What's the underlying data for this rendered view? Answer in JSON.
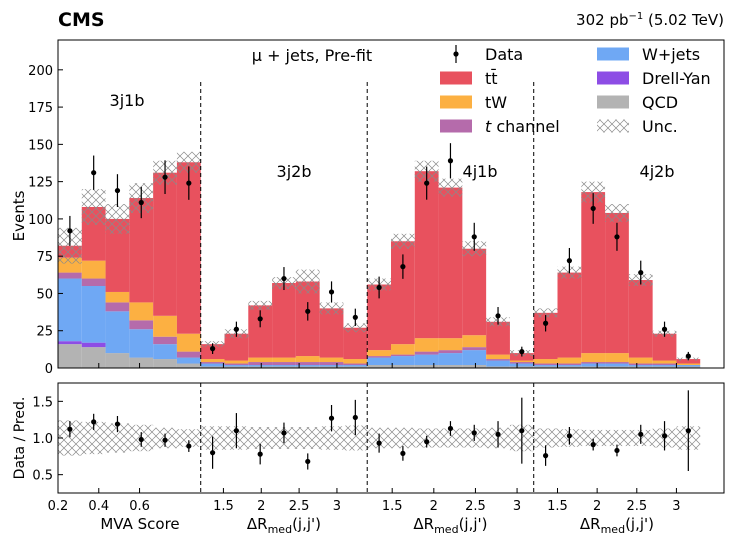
{
  "header": {
    "experiment": "CMS",
    "lumi": "302 pb",
    "lumi_exp": "−1",
    "energy": " (5.02 TeV)",
    "channel": "μ + jets, Pre-fit"
  },
  "colors": {
    "ttbar": "#e8515e",
    "tW": "#fcb042",
    "tchannel": "#b56bab",
    "wjets": "#6fa8f4",
    "dy": "#8d4de5",
    "qcd": "#b3b3b3"
  },
  "legend": [
    {
      "key": "data",
      "label": "Data",
      "kind": "marker"
    },
    {
      "key": "ttbar",
      "label": "tt̄",
      "kind": "patch"
    },
    {
      "key": "tW",
      "label": "tW",
      "kind": "patch"
    },
    {
      "key": "tchannel",
      "label": "t channel",
      "kind": "patch",
      "italic_prefix": "t"
    },
    {
      "key": "wjets",
      "label": "W+jets",
      "kind": "patch"
    },
    {
      "key": "dy",
      "label": "Drell-Yan",
      "kind": "patch"
    },
    {
      "key": "qcd",
      "label": "QCD",
      "kind": "patch"
    },
    {
      "key": "unc",
      "label": "Unc.",
      "kind": "hatch"
    }
  ],
  "chart_data": {
    "type": "stacked-bar",
    "main": {
      "ylabel": "Events",
      "ylim": [
        0,
        220
      ],
      "yticks": [
        0,
        25,
        50,
        75,
        100,
        125,
        150,
        175,
        200
      ]
    },
    "ratio": {
      "ylabel": "Data / Pred.",
      "ylim": [
        0.25,
        1.75
      ],
      "yticks": [
        0.5,
        1.0,
        1.5
      ],
      "ytick_labels": [
        "0.5",
        "1.0",
        "1.5"
      ]
    },
    "x_total_bins": 28,
    "regions": [
      {
        "name": "3j1b",
        "xlabel": "MVA Score",
        "xrange": [
          0.2,
          0.9
        ],
        "xticks": [
          0.2,
          0.4,
          0.6
        ],
        "xtick_labels": [
          "0.2",
          "0.4",
          "0.6"
        ],
        "bins": [
          {
            "qcd": 16,
            "dy": 2,
            "wjets": 42,
            "tchannel": 4,
            "tW": 10,
            "ttbar": 8,
            "unc": 12,
            "data": 92,
            "data_err": 10,
            "ratio": 1.12,
            "ratio_err": 0.11,
            "runc": 0.24
          },
          {
            "qcd": 14,
            "dy": 3,
            "wjets": 38,
            "tchannel": 5,
            "tW": 12,
            "ttbar": 36,
            "unc": 12,
            "data": 131,
            "data_err": 11.5,
            "ratio": 1.22,
            "ratio_err": 0.11,
            "runc": 0.22
          },
          {
            "qcd": 10,
            "dy": 0,
            "wjets": 28,
            "tchannel": 6,
            "tW": 7,
            "ttbar": 49,
            "unc": 10,
            "data": 119,
            "data_err": 11,
            "ratio": 1.19,
            "ratio_err": 0.11,
            "runc": 0.2
          },
          {
            "qcd": 7,
            "dy": 0,
            "wjets": 19,
            "tchannel": 6,
            "tW": 12,
            "ttbar": 70,
            "unc": 10,
            "data": 111,
            "data_err": 10.5,
            "ratio": 0.98,
            "ratio_err": 0.1,
            "runc": 0.18
          },
          {
            "qcd": 6,
            "dy": 0,
            "wjets": 10,
            "tchannel": 5,
            "tW": 14,
            "ttbar": 96,
            "unc": 8,
            "data": 128,
            "data_err": 11.3,
            "ratio": 0.97,
            "ratio_err": 0.09,
            "runc": 0.14
          },
          {
            "qcd": 3,
            "dy": 0,
            "wjets": 4,
            "tchannel": 4,
            "tW": 12,
            "ttbar": 115,
            "unc": 7,
            "data": 124,
            "data_err": 11.2,
            "ratio": 0.89,
            "ratio_err": 0.08,
            "runc": 0.12
          }
        ]
      },
      {
        "name": "3j2b",
        "xlabel": "ΔR_med(j,j')",
        "xrange": [
          1.2,
          3.4
        ],
        "xticks": [
          1.5,
          2,
          2.5,
          3
        ],
        "xtick_labels": [
          "1.5",
          "2",
          "2.5",
          "3"
        ],
        "bins": [
          {
            "qcd": 1,
            "dy": 0,
            "wjets": 2,
            "tchannel": 1,
            "tW": 2,
            "ttbar": 10,
            "unc": 2,
            "data": 13,
            "data_err": 3.6,
            "ratio": 0.8,
            "ratio_err": 0.22,
            "runc": 0.16
          },
          {
            "qcd": 1,
            "dy": 0,
            "wjets": 1,
            "tchannel": 1,
            "tW": 2,
            "ttbar": 18,
            "unc": 3,
            "data": 26,
            "data_err": 5.1,
            "ratio": 1.1,
            "ratio_err": 0.24,
            "runc": 0.16
          },
          {
            "qcd": 1,
            "dy": 0,
            "wjets": 1,
            "tchannel": 2,
            "tW": 3,
            "ttbar": 35,
            "unc": 3,
            "data": 33,
            "data_err": 5.7,
            "ratio": 0.78,
            "ratio_err": 0.14,
            "runc": 0.15
          },
          {
            "qcd": 1,
            "dy": 0,
            "wjets": 1,
            "tchannel": 2,
            "tW": 3,
            "ttbar": 50,
            "unc": 4,
            "data": 60,
            "data_err": 7.7,
            "ratio": 1.07,
            "ratio_err": 0.14,
            "runc": 0.15
          },
          {
            "qcd": 1,
            "dy": 0,
            "wjets": 1,
            "tchannel": 2,
            "tW": 4,
            "ttbar": 50,
            "unc": 8,
            "data": 38,
            "data_err": 6.2,
            "ratio": 0.68,
            "ratio_err": 0.11,
            "runc": 0.15
          },
          {
            "qcd": 1,
            "dy": 0,
            "wjets": 1,
            "tchannel": 2,
            "tW": 3,
            "ttbar": 33,
            "unc": 4,
            "data": 51,
            "data_err": 7.1,
            "ratio": 1.27,
            "ratio_err": 0.18,
            "runc": 0.16
          },
          {
            "qcd": 1,
            "dy": 0,
            "wjets": 1,
            "tchannel": 1,
            "tW": 3,
            "ttbar": 21,
            "unc": 3,
            "data": 34,
            "data_err": 5.8,
            "ratio": 1.28,
            "ratio_err": 0.24,
            "runc": 0.17
          }
        ]
      },
      {
        "name": "4j1b",
        "xlabel": "ΔR_med(j,j')",
        "xrange": [
          1.2,
          3.2
        ],
        "xticks": [
          1.5,
          2,
          2.5,
          3
        ],
        "xtick_labels": [
          "1.5",
          "2",
          "2.5",
          "3"
        ],
        "bins": [
          {
            "qcd": 2,
            "dy": 0,
            "wjets": 5,
            "tchannel": 1,
            "tW": 4,
            "ttbar": 44,
            "unc": 4,
            "data": 54,
            "data_err": 7.3,
            "ratio": 0.93,
            "ratio_err": 0.13,
            "runc": 0.14
          },
          {
            "qcd": 2,
            "dy": 0,
            "wjets": 6,
            "tchannel": 1,
            "tW": 7,
            "ttbar": 69,
            "unc": 5,
            "data": 68,
            "data_err": 8.2,
            "ratio": 0.79,
            "ratio_err": 0.1,
            "runc": 0.14
          },
          {
            "qcd": 2,
            "dy": 0,
            "wjets": 7,
            "tchannel": 2,
            "tW": 9,
            "ttbar": 112,
            "unc": 7,
            "data": 124,
            "data_err": 11.1,
            "ratio": 0.95,
            "ratio_err": 0.08,
            "runc": 0.13
          },
          {
            "qcd": 2,
            "dy": 0,
            "wjets": 8,
            "tchannel": 2,
            "tW": 8,
            "ttbar": 101,
            "unc": 6,
            "data": 139,
            "data_err": 11.8,
            "ratio": 1.13,
            "ratio_err": 0.1,
            "runc": 0.13
          },
          {
            "qcd": 2,
            "dy": 0,
            "wjets": 10,
            "tchannel": 2,
            "tW": 8,
            "ttbar": 58,
            "unc": 5,
            "data": 88,
            "data_err": 9.4,
            "ratio": 1.07,
            "ratio_err": 0.11,
            "runc": 0.13
          },
          {
            "qcd": 1,
            "dy": 0,
            "wjets": 4,
            "tchannel": 1,
            "tW": 3,
            "ttbar": 22,
            "unc": 3,
            "data": 35,
            "data_err": 5.9,
            "ratio": 1.05,
            "ratio_err": 0.18,
            "runc": 0.14
          },
          {
            "qcd": 1,
            "dy": 0,
            "wjets": 2,
            "tchannel": 1,
            "tW": 1,
            "ttbar": 5,
            "unc": 2,
            "data": 11,
            "data_err": 3.3,
            "ratio": 1.1,
            "ratio_err": 0.45,
            "runc": 0.18
          }
        ]
      },
      {
        "name": "4j2b",
        "xlabel": "ΔR_med(j,j')",
        "xrange": [
          1.2,
          3.3
        ],
        "xticks": [
          1.5,
          2,
          2.5,
          3
        ],
        "xtick_labels": [
          "1.5",
          "2",
          "2.5",
          "3"
        ],
        "bins": [
          {
            "qcd": 1,
            "dy": 0,
            "wjets": 1,
            "tchannel": 1,
            "tW": 3,
            "ttbar": 31,
            "unc": 3,
            "data": 30,
            "data_err": 5.5,
            "ratio": 0.76,
            "ratio_err": 0.14,
            "runc": 0.13
          },
          {
            "qcd": 1,
            "dy": 0,
            "wjets": 1,
            "tchannel": 1,
            "tW": 4,
            "ttbar": 57,
            "unc": 4,
            "data": 72,
            "data_err": 8.5,
            "ratio": 1.03,
            "ratio_err": 0.12,
            "runc": 0.12
          },
          {
            "qcd": 1,
            "dy": 0,
            "wjets": 2,
            "tchannel": 1,
            "tW": 6,
            "ttbar": 108,
            "unc": 7,
            "data": 107,
            "data_err": 10.3,
            "ratio": 0.91,
            "ratio_err": 0.08,
            "runc": 0.11
          },
          {
            "qcd": 1,
            "dy": 0,
            "wjets": 2,
            "tchannel": 1,
            "tW": 6,
            "ttbar": 94,
            "unc": 6,
            "data": 88,
            "data_err": 9.4,
            "ratio": 0.83,
            "ratio_err": 0.08,
            "runc": 0.11
          },
          {
            "qcd": 1,
            "dy": 0,
            "wjets": 1,
            "tchannel": 1,
            "tW": 4,
            "ttbar": 52,
            "unc": 4,
            "data": 64,
            "data_err": 8,
            "ratio": 1.05,
            "ratio_err": 0.13,
            "runc": 0.11
          },
          {
            "qcd": 1,
            "dy": 0,
            "wjets": 1,
            "tchannel": 1,
            "tW": 2,
            "ttbar": 18,
            "unc": 2,
            "data": 26,
            "data_err": 5.1,
            "ratio": 1.03,
            "ratio_err": 0.2,
            "runc": 0.13
          },
          {
            "qcd": 1,
            "dy": 0,
            "wjets": 1,
            "tchannel": 0,
            "tW": 1,
            "ttbar": 3,
            "unc": 1,
            "data": 8,
            "data_err": 2.8,
            "ratio": 1.1,
            "ratio_err": 0.55,
            "runc": 0.16
          }
        ]
      }
    ]
  }
}
